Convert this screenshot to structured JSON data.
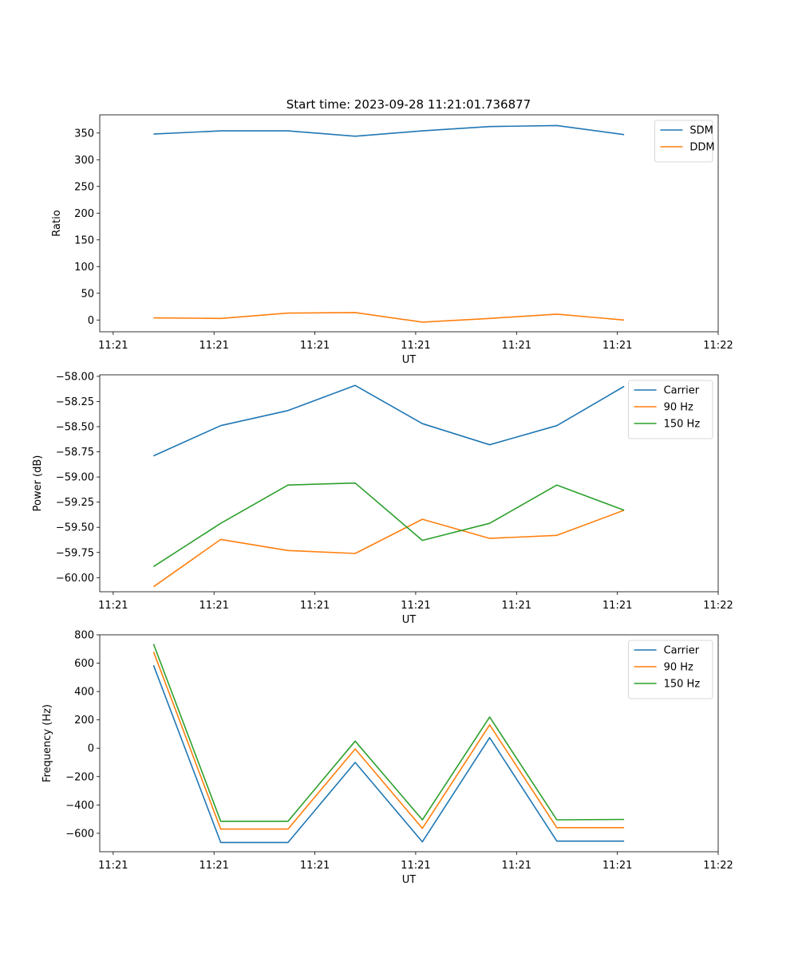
{
  "figure_title": "Start time: 2023-09-28 11:21:01.736877",
  "chart_data": [
    {
      "type": "line",
      "title": "Start time: 2023-09-28 11:21:01.736877",
      "xlabel": "UT",
      "ylabel": "Ratio",
      "x": [
        1,
        2,
        3,
        4,
        5,
        6,
        7,
        8
      ],
      "xlim": [
        0.2,
        9.4
      ],
      "x_ticks": [
        0.4,
        1.9,
        3.4,
        4.9,
        6.4,
        7.9,
        9.4
      ],
      "x_tick_labels": [
        "11:21",
        "11:21",
        "11:21",
        "11:21",
        "11:21",
        "11:21",
        "11:22"
      ],
      "ylim": [
        -22,
        384
      ],
      "y_ticks": [
        0,
        50,
        100,
        150,
        200,
        250,
        300,
        350
      ],
      "y_tick_labels": [
        "0",
        "50",
        "100",
        "150",
        "200",
        "250",
        "300",
        "350"
      ],
      "legend_position": "top-right",
      "grid": false,
      "series": [
        {
          "name": "SDM",
          "color": "#1f77b4",
          "values": [
            348,
            354,
            354,
            344,
            354,
            362,
            364,
            347
          ]
        },
        {
          "name": "DDM",
          "color": "#ff7f0e",
          "values": [
            4,
            3,
            13,
            14,
            -4,
            3,
            11,
            0
          ]
        }
      ]
    },
    {
      "type": "line",
      "title": "",
      "xlabel": "UT",
      "ylabel": "Power (dB)",
      "x": [
        1,
        2,
        3,
        4,
        5,
        6,
        7,
        8
      ],
      "xlim": [
        0.2,
        9.4
      ],
      "x_ticks": [
        0.4,
        1.9,
        3.4,
        4.9,
        6.4,
        7.9,
        9.4
      ],
      "x_tick_labels": [
        "11:21",
        "11:21",
        "11:21",
        "11:21",
        "11:21",
        "11:21",
        "11:22"
      ],
      "ylim": [
        -60.14,
        -57.985
      ],
      "y_ticks": [
        -60.0,
        -59.75,
        -59.5,
        -59.25,
        -59.0,
        -58.75,
        -58.5,
        -58.25,
        -58.0
      ],
      "y_tick_labels": [
        "−60.00",
        "−59.75",
        "−59.50",
        "−59.25",
        "−59.00",
        "−58.75",
        "−58.50",
        "−58.25",
        "−58.00"
      ],
      "legend_position": "top-right",
      "grid": false,
      "series": [
        {
          "name": "Carrier",
          "color": "#1f77b4",
          "values": [
            -58.79,
            -58.49,
            -58.34,
            -58.09,
            -58.47,
            -58.68,
            -58.49,
            -58.1
          ]
        },
        {
          "name": "90 Hz",
          "color": "#ff7f0e",
          "values": [
            -60.09,
            -59.62,
            -59.73,
            -59.76,
            -59.42,
            -59.61,
            -59.58,
            -59.33
          ]
        },
        {
          "name": "150 Hz",
          "color": "#2ca02c",
          "values": [
            -59.89,
            -59.46,
            -59.08,
            -59.06,
            -59.63,
            -59.46,
            -59.08,
            -59.33
          ]
        }
      ]
    },
    {
      "type": "line",
      "title": "",
      "xlabel": "UT",
      "ylabel": "Frequency (Hz)",
      "x": [
        1,
        2,
        3,
        4,
        5,
        6,
        7,
        8
      ],
      "xlim": [
        0.2,
        9.4
      ],
      "x_ticks": [
        0.4,
        1.9,
        3.4,
        4.9,
        6.4,
        7.9,
        9.4
      ],
      "x_tick_labels": [
        "11:21",
        "11:21",
        "11:21",
        "11:21",
        "11:21",
        "11:21",
        "11:22"
      ],
      "ylim": [
        -730,
        800
      ],
      "y_ticks": [
        -600,
        -400,
        -200,
        0,
        200,
        400,
        600,
        800
      ],
      "y_tick_labels": [
        "−600",
        "−400",
        "−200",
        "0",
        "200",
        "400",
        "600",
        "800"
      ],
      "legend_position": "top-right",
      "grid": false,
      "series": [
        {
          "name": "Carrier",
          "color": "#1f77b4",
          "values": [
            585,
            -665,
            -665,
            -100,
            -660,
            75,
            -655,
            -655
          ]
        },
        {
          "name": "90 Hz",
          "color": "#ff7f0e",
          "values": [
            680,
            -570,
            -570,
            -5,
            -565,
            165,
            -560,
            -560
          ]
        },
        {
          "name": "150 Hz",
          "color": "#2ca02c",
          "values": [
            735,
            -515,
            -515,
            50,
            -505,
            220,
            -505,
            -502
          ]
        }
      ]
    }
  ]
}
